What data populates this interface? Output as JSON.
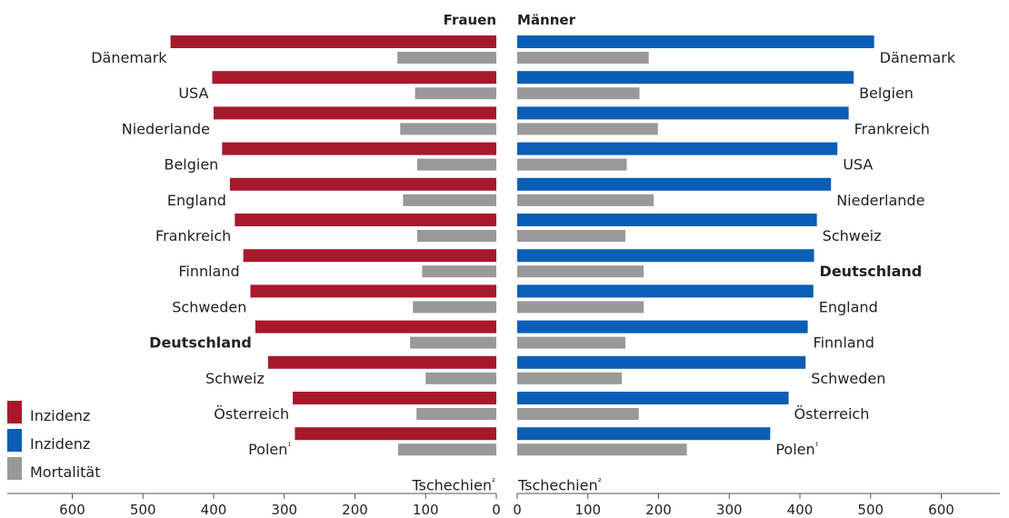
{
  "chart_data": [
    {
      "type": "bar",
      "title": "Frauen",
      "xlim": [
        0,
        600
      ],
      "x_ticks": [
        "600",
        "500",
        "400",
        "300",
        "200",
        "100",
        "0"
      ],
      "x_direction": "reversed",
      "categories": [
        "Dänemark",
        "USA",
        "Niederlande",
        "Belgien",
        "England",
        "Frankreich",
        "Finnland",
        "Schweden",
        "Deutschland",
        "Schweiz",
        "Österreich",
        "Polen¹",
        "Tschechien²"
      ],
      "highlight": "Deutschland",
      "series": [
        {
          "name": "Inzidenz",
          "color": "#a8182c",
          "values": [
            461,
            402,
            400,
            388,
            377,
            370,
            358,
            348,
            341,
            323,
            288,
            285,
            null
          ]
        },
        {
          "name": "Mortalität",
          "color": "#999999",
          "values": [
            140,
            115,
            136,
            112,
            132,
            112,
            105,
            118,
            122,
            100,
            113,
            139,
            null
          ]
        }
      ]
    },
    {
      "type": "bar",
      "title": "Männer",
      "xlim": [
        0,
        600
      ],
      "x_ticks": [
        "0",
        "100",
        "200",
        "300",
        "400",
        "500",
        "600"
      ],
      "x_direction": "normal",
      "categories": [
        "Dänemark",
        "Belgien",
        "Frankreich",
        "USA",
        "Niederlande",
        "Schweiz",
        "Deutschland",
        "England",
        "Finnland",
        "Schweden",
        "Österreich",
        "Polen¹",
        "Tschechien²"
      ],
      "highlight": "Deutschland",
      "series": [
        {
          "name": "Inzidenz",
          "color": "#0a5eb5",
          "values": [
            505,
            476,
            469,
            453,
            444,
            424,
            420,
            419,
            411,
            408,
            384,
            358,
            null
          ]
        },
        {
          "name": "Mortalität",
          "color": "#999999",
          "values": [
            186,
            173,
            199,
            155,
            193,
            153,
            179,
            179,
            153,
            148,
            172,
            240,
            null
          ]
        }
      ]
    }
  ],
  "legend": [
    {
      "label": "Inzidenz",
      "color": "#a8182c"
    },
    {
      "label": "Inzidenz",
      "color": "#0a5eb5"
    },
    {
      "label": "Mortalität",
      "color": "#999999"
    }
  ]
}
